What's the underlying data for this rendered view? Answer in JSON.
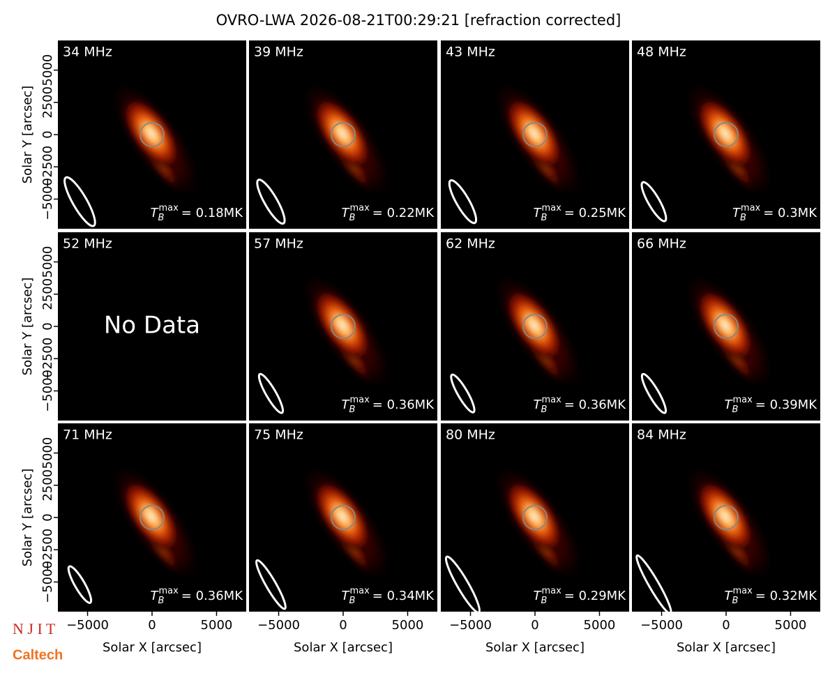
{
  "title": "OVRO-LWA 2026-08-21T00:29:21 [refraction corrected]",
  "tb_symbol": {
    "base": "T",
    "sub": "B",
    "sup": "max"
  },
  "logos": [
    "N J I T",
    "Caltech"
  ],
  "chart_data": [
    {
      "type": "image",
      "title": "34 MHz",
      "annotation": "= 0.18MK",
      "xlim": [
        -7300,
        7300
      ],
      "ylim": [
        -7300,
        7300
      ],
      "ylabel": "Solar Y [arcsec]",
      "yticks": [
        {
          "value": -5000,
          "label": "−5000"
        },
        {
          "value": -2500,
          "label": "−2500"
        },
        0,
        2500,
        5000
      ]
    },
    {
      "type": "image",
      "title": "39 MHz",
      "annotation": "= 0.22MK",
      "xlim": [
        -7300,
        7300
      ],
      "ylim": [
        -7300,
        7300
      ]
    },
    {
      "type": "image",
      "title": "43 MHz",
      "annotation": "= 0.25MK",
      "xlim": [
        -7300,
        7300
      ],
      "ylim": [
        -7300,
        7300
      ]
    },
    {
      "type": "image",
      "title": "48 MHz",
      "annotation": "= 0.3MK",
      "xlim": [
        -7300,
        7300
      ],
      "ylim": [
        -7300,
        7300
      ]
    },
    {
      "type": "nodata",
      "title": "52 MHz",
      "annotation": "No Data",
      "xlim": [
        -7300,
        7300
      ],
      "ylim": [
        -7300,
        7300
      ],
      "ylabel": "Solar Y [arcsec]",
      "yticks": [
        {
          "value": -5000,
          "label": "−5000"
        },
        {
          "value": -2500,
          "label": "−2500"
        },
        0,
        2500,
        5000
      ]
    },
    {
      "type": "image",
      "title": "57 MHz",
      "annotation": "= 0.36MK",
      "xlim": [
        -7300,
        7300
      ],
      "ylim": [
        -7300,
        7300
      ]
    },
    {
      "type": "image",
      "title": "62 MHz",
      "annotation": "= 0.36MK",
      "xlim": [
        -7300,
        7300
      ],
      "ylim": [
        -7300,
        7300
      ]
    },
    {
      "type": "image",
      "title": "66 MHz",
      "annotation": "= 0.39MK",
      "xlim": [
        -7300,
        7300
      ],
      "ylim": [
        -7300,
        7300
      ]
    },
    {
      "type": "image",
      "title": "71 MHz",
      "annotation": "= 0.36MK",
      "xlim": [
        -7300,
        7300
      ],
      "ylim": [
        -7300,
        7300
      ],
      "ylabel": "Solar Y [arcsec]",
      "yticks": [
        {
          "value": -5000,
          "label": "−5000"
        },
        {
          "value": -2500,
          "label": "−2500"
        },
        0,
        2500,
        5000
      ],
      "xlabel": "Solar X [arcsec]",
      "xticks": [
        {
          "value": -5000,
          "label": "−5000"
        },
        0,
        5000
      ]
    },
    {
      "type": "image",
      "title": "75 MHz",
      "annotation": "= 0.34MK",
      "xlim": [
        -7300,
        7300
      ],
      "ylim": [
        -7300,
        7300
      ],
      "xlabel": "Solar X [arcsec]",
      "xticks": [
        {
          "value": -5000,
          "label": "−5000"
        },
        0,
        5000
      ]
    },
    {
      "type": "image",
      "title": "80 MHz",
      "annotation": "= 0.29MK",
      "xlim": [
        -7300,
        7300
      ],
      "ylim": [
        -7300,
        7300
      ],
      "xlabel": "Solar X [arcsec]",
      "xticks": [
        {
          "value": -5000,
          "label": "−5000"
        },
        0,
        5000
      ]
    },
    {
      "type": "image",
      "title": "84 MHz",
      "annotation": "= 0.32MK",
      "xlim": [
        -7300,
        7300
      ],
      "ylim": [
        -7300,
        7300
      ],
      "xlabel": "Solar X [arcsec]",
      "xticks": [
        {
          "value": -5000,
          "label": "−5000"
        },
        0,
        5000
      ]
    }
  ]
}
